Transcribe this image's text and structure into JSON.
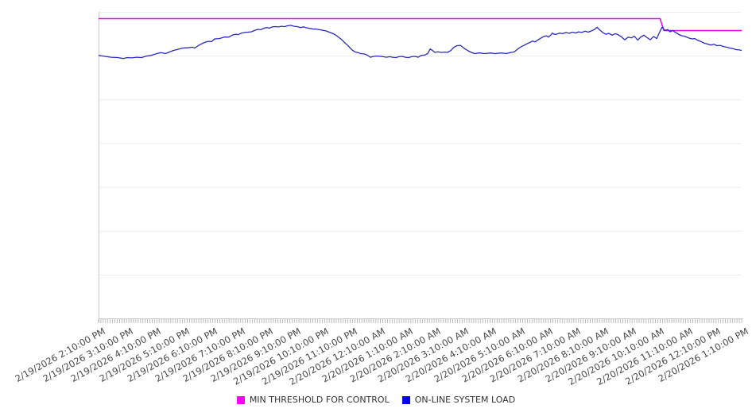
{
  "colors": {
    "background": "#ffffff",
    "grid": "#ededed",
    "axis_line": "#c9c9c9",
    "tick": "#ababab",
    "tick_label_text": "#4a4a4a",
    "legend_text": "#333333",
    "threshold_line": "#e100e1",
    "load_line": "#2929c0",
    "legend_marker_threshold": "#ff00ff",
    "legend_marker_load": "#0000f0"
  },
  "legend": {
    "items": [
      {
        "label": "MIN THRESHOLD FOR CONTROL",
        "color": "#ff00ff"
      },
      {
        "label": "ON-LINE SYSTEM LOAD",
        "color": "#0000f0"
      }
    ]
  },
  "chart_data": {
    "type": "line",
    "title": "",
    "xlabel": "",
    "ylabel": "",
    "grid": true,
    "legend_position": "bottom",
    "y_axis_labels_shown": false,
    "y_gridline_divisions": 7,
    "ylim": [
      0,
      100
    ],
    "x_hours_range": [
      0,
      23
    ],
    "minor_ticks_per_hour": 12,
    "x_tick_labels": [
      "2/19/2026 2:10:00 PM",
      "2/19/2026 3:10:00 PM",
      "2/19/2026 4:10:00 PM",
      "2/19/2026 5:10:00 PM",
      "2/19/2026 6:10:00 PM",
      "2/19/2026 7:10:00 PM",
      "2/19/2026 8:10:00 PM",
      "2/19/2026 9:10:00 PM",
      "2/19/2026 10:10:00 PM",
      "2/19/2026 11:10:00 PM",
      "2/20/2026 12:10:00 AM",
      "2/20/2026 1:10:00 AM",
      "2/20/2026 2:10:00 AM",
      "2/20/2026 3:10:00 AM",
      "2/20/2026 4:10:00 AM",
      "2/20/2026 5:10:00 AM",
      "2/20/2026 6:10:00 AM",
      "2/20/2026 7:10:00 AM",
      "2/20/2026 8:10:00 AM",
      "2/20/2026 9:10:00 AM",
      "2/20/2026 10:10:00 AM",
      "2/20/2026 11:10:00 AM",
      "2/20/2026 12:10:00 PM",
      "2/20/2026 1:10:00 PM"
    ],
    "series": [
      {
        "name": "MIN THRESHOLD FOR CONTROL",
        "color": "#e100e1",
        "width": 1.5,
        "points": [
          [
            0,
            97.8
          ],
          [
            20.08,
            97.8
          ],
          [
            20.22,
            93.9
          ],
          [
            23,
            93.9
          ]
        ]
      },
      {
        "name": "ON-LINE SYSTEM LOAD",
        "color": "#2929c0",
        "width": 1.3,
        "points": [
          [
            0,
            85.8
          ],
          [
            0.23,
            85.5
          ],
          [
            0.45,
            85.2
          ],
          [
            0.68,
            85.1
          ],
          [
            0.88,
            84.8
          ],
          [
            1.02,
            85.1
          ],
          [
            1.19,
            85.0
          ],
          [
            1.36,
            85.2
          ],
          [
            1.54,
            85.1
          ],
          [
            1.71,
            85.6
          ],
          [
            1.88,
            85.8
          ],
          [
            2.05,
            86.3
          ],
          [
            2.22,
            86.7
          ],
          [
            2.39,
            86.4
          ],
          [
            2.5,
            86.8
          ],
          [
            2.67,
            87.4
          ],
          [
            2.84,
            87.8
          ],
          [
            3.01,
            88.2
          ],
          [
            3.18,
            88.3
          ],
          [
            3.35,
            88.5
          ],
          [
            3.44,
            88.2
          ],
          [
            3.58,
            89.1
          ],
          [
            3.75,
            89.9
          ],
          [
            3.92,
            90.4
          ],
          [
            4.04,
            90.3
          ],
          [
            4.15,
            91.2
          ],
          [
            4.32,
            91.3
          ],
          [
            4.49,
            91.8
          ],
          [
            4.66,
            91.8
          ],
          [
            4.78,
            92.4
          ],
          [
            4.89,
            92.7
          ],
          [
            5.0,
            92.6
          ],
          [
            5.12,
            93.1
          ],
          [
            5.23,
            93.3
          ],
          [
            5.34,
            93.4
          ],
          [
            5.46,
            93.5
          ],
          [
            5.57,
            93.9
          ],
          [
            5.69,
            94.3
          ],
          [
            5.8,
            94.2
          ],
          [
            5.91,
            94.7
          ],
          [
            6.03,
            94.9
          ],
          [
            6.11,
            94.7
          ],
          [
            6.2,
            95.1
          ],
          [
            6.31,
            95.2
          ],
          [
            6.43,
            95.1
          ],
          [
            6.54,
            95.3
          ],
          [
            6.65,
            95.2
          ],
          [
            6.77,
            95.5
          ],
          [
            6.88,
            95.6
          ],
          [
            6.99,
            95.3
          ],
          [
            7.11,
            95.2
          ],
          [
            7.22,
            94.9
          ],
          [
            7.34,
            95.1
          ],
          [
            7.45,
            94.8
          ],
          [
            7.56,
            94.6
          ],
          [
            7.68,
            94.4
          ],
          [
            7.79,
            94.4
          ],
          [
            7.9,
            94.2
          ],
          [
            8.02,
            94.0
          ],
          [
            8.13,
            93.8
          ],
          [
            8.25,
            93.4
          ],
          [
            8.36,
            93.0
          ],
          [
            8.47,
            92.5
          ],
          [
            8.59,
            91.7
          ],
          [
            8.7,
            90.9
          ],
          [
            8.81,
            89.9
          ],
          [
            8.93,
            88.9
          ],
          [
            9.04,
            87.8
          ],
          [
            9.16,
            87.0
          ],
          [
            9.27,
            86.7
          ],
          [
            9.38,
            86.4
          ],
          [
            9.5,
            86.3
          ],
          [
            9.61,
            85.9
          ],
          [
            9.72,
            85.2
          ],
          [
            9.84,
            85.5
          ],
          [
            9.95,
            85.6
          ],
          [
            10.07,
            85.5
          ],
          [
            10.18,
            85.4
          ],
          [
            10.29,
            85.2
          ],
          [
            10.41,
            85.4
          ],
          [
            10.52,
            85.2
          ],
          [
            10.63,
            85.1
          ],
          [
            10.75,
            85.4
          ],
          [
            10.86,
            85.5
          ],
          [
            10.97,
            85.2
          ],
          [
            11.09,
            85.1
          ],
          [
            11.2,
            85.4
          ],
          [
            11.32,
            85.5
          ],
          [
            11.43,
            85.2
          ],
          [
            11.54,
            85.8
          ],
          [
            11.66,
            85.9
          ],
          [
            11.77,
            86.4
          ],
          [
            11.86,
            87.9
          ],
          [
            11.94,
            87.4
          ],
          [
            12.03,
            86.8
          ],
          [
            12.14,
            87.0
          ],
          [
            12.25,
            86.8
          ],
          [
            12.37,
            86.9
          ],
          [
            12.48,
            86.8
          ],
          [
            12.6,
            87.4
          ],
          [
            12.71,
            88.5
          ],
          [
            12.82,
            89.0
          ],
          [
            12.94,
            89.1
          ],
          [
            13.02,
            88.5
          ],
          [
            13.11,
            87.9
          ],
          [
            13.22,
            87.3
          ],
          [
            13.33,
            86.8
          ],
          [
            13.45,
            86.4
          ],
          [
            13.62,
            86.6
          ],
          [
            13.82,
            86.4
          ],
          [
            14.02,
            86.6
          ],
          [
            14.19,
            86.4
          ],
          [
            14.39,
            86.6
          ],
          [
            14.58,
            86.4
          ],
          [
            14.76,
            86.8
          ],
          [
            14.87,
            87.0
          ],
          [
            14.95,
            87.6
          ],
          [
            15.04,
            88.2
          ],
          [
            15.15,
            88.8
          ],
          [
            15.24,
            89.2
          ],
          [
            15.32,
            89.6
          ],
          [
            15.44,
            90.1
          ],
          [
            15.52,
            90.5
          ],
          [
            15.61,
            90.2
          ],
          [
            15.72,
            90.9
          ],
          [
            15.81,
            91.4
          ],
          [
            15.92,
            92.0
          ],
          [
            16.01,
            92.2
          ],
          [
            16.09,
            91.8
          ],
          [
            16.18,
            92.5
          ],
          [
            16.23,
            93.1
          ],
          [
            16.29,
            92.7
          ],
          [
            16.38,
            92.7
          ],
          [
            16.49,
            93.1
          ],
          [
            16.6,
            92.9
          ],
          [
            16.72,
            93.3
          ],
          [
            16.83,
            93.0
          ],
          [
            16.94,
            93.4
          ],
          [
            17.06,
            93.1
          ],
          [
            17.17,
            93.5
          ],
          [
            17.28,
            93.3
          ],
          [
            17.4,
            93.7
          ],
          [
            17.51,
            93.4
          ],
          [
            17.63,
            93.8
          ],
          [
            17.74,
            94.3
          ],
          [
            17.83,
            95.0
          ],
          [
            17.91,
            94.2
          ],
          [
            18.03,
            93.3
          ],
          [
            18.14,
            92.7
          ],
          [
            18.25,
            93.0
          ],
          [
            18.37,
            92.4
          ],
          [
            18.48,
            92.9
          ],
          [
            18.59,
            92.5
          ],
          [
            18.71,
            91.8
          ],
          [
            18.82,
            90.9
          ],
          [
            18.94,
            91.8
          ],
          [
            19.05,
            91.5
          ],
          [
            19.16,
            92.1
          ],
          [
            19.28,
            90.8
          ],
          [
            19.39,
            91.8
          ],
          [
            19.5,
            92.4
          ],
          [
            19.62,
            91.6
          ],
          [
            19.73,
            90.9
          ],
          [
            19.85,
            92.0
          ],
          [
            19.96,
            91.3
          ],
          [
            20.07,
            93.5
          ],
          [
            20.16,
            95.1
          ],
          [
            20.24,
            94.0
          ],
          [
            20.36,
            94.2
          ],
          [
            20.44,
            93.5
          ],
          [
            20.53,
            93.9
          ],
          [
            20.64,
            93.3
          ],
          [
            20.76,
            92.6
          ],
          [
            20.87,
            92.2
          ],
          [
            20.98,
            92.0
          ],
          [
            21.1,
            91.5
          ],
          [
            21.21,
            91.2
          ],
          [
            21.32,
            91.3
          ],
          [
            21.44,
            90.7
          ],
          [
            21.55,
            90.3
          ],
          [
            21.66,
            89.8
          ],
          [
            21.78,
            89.5
          ],
          [
            21.89,
            89.2
          ],
          [
            22.01,
            89.4
          ],
          [
            22.12,
            89.0
          ],
          [
            22.23,
            89.1
          ],
          [
            22.35,
            88.7
          ],
          [
            22.46,
            88.5
          ],
          [
            22.58,
            88.2
          ],
          [
            22.69,
            88.0
          ],
          [
            22.8,
            87.7
          ],
          [
            22.92,
            87.6
          ],
          [
            23.0,
            87.4
          ]
        ]
      }
    ]
  }
}
